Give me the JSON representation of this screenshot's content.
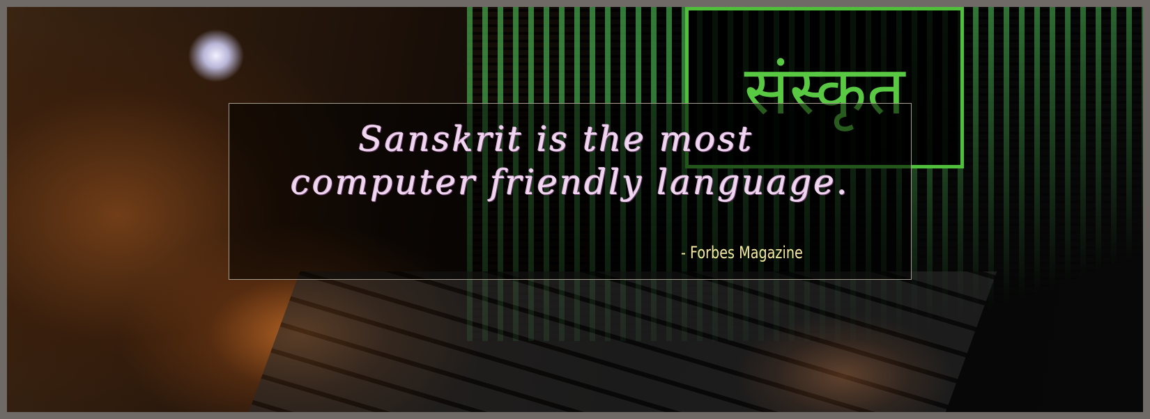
{
  "screen_text": "संस्कृत",
  "quote": {
    "lines": [
      "Sanskrit is the most",
      "computer friendly language."
    ],
    "attribution": "- Forbes Magazine"
  }
}
